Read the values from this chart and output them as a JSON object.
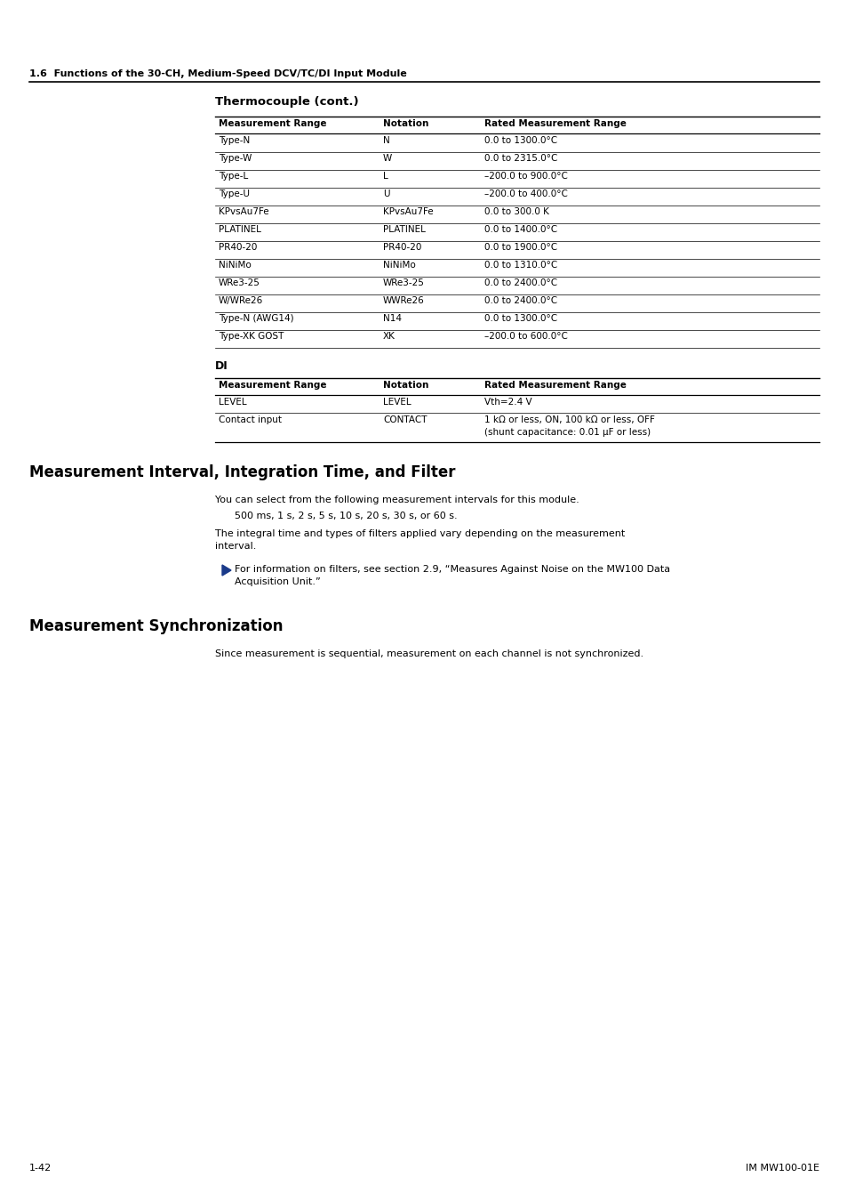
{
  "page_title": "1.6  Functions of the 30-CH, Medium-Speed DCV/TC/DI Input Module",
  "section1_title": "Thermocouple (cont.)",
  "tc_headers": [
    "Measurement Range",
    "Notation",
    "Rated Measurement Range"
  ],
  "tc_rows": [
    [
      "Type-N",
      "N",
      "0.0 to 1300.0°C"
    ],
    [
      "Type-W",
      "W",
      "0.0 to 2315.0°C"
    ],
    [
      "Type-L",
      "L",
      "–200.0 to 900.0°C"
    ],
    [
      "Type-U",
      "U",
      "–200.0 to 400.0°C"
    ],
    [
      "KPvsAu7Fe",
      "KPvsAu7Fe",
      "0.0 to 300.0 K"
    ],
    [
      "PLATINEL",
      "PLATINEL",
      "0.0 to 1400.0°C"
    ],
    [
      "PR40-20",
      "PR40-20",
      "0.0 to 1900.0°C"
    ],
    [
      "NiNiMo",
      "NiNiMo",
      "0.0 to 1310.0°C"
    ],
    [
      "WRe3-25",
      "WRe3-25",
      "0.0 to 2400.0°C"
    ],
    [
      "W/WRe26",
      "WWRe26",
      "0.0 to 2400.0°C"
    ],
    [
      "Type-N (AWG14)",
      "N14",
      "0.0 to 1300.0°C"
    ],
    [
      "Type-XK GOST",
      "XK",
      "–200.0 to 600.0°C"
    ]
  ],
  "section2_title": "DI",
  "di_headers": [
    "Measurement Range",
    "Notation",
    "Rated Measurement Range"
  ],
  "di_rows": [
    [
      "LEVEL",
      "LEVEL",
      "Vth=2.4 V"
    ],
    [
      "Contact input",
      "CONTACT",
      "1 kΩ or less, ON, 100 kΩ or less, OFF\n(shunt capacitance: 0.01 μF or less)"
    ]
  ],
  "section3_title": "Measurement Interval, Integration Time, and Filter",
  "section3_para1": "You can select from the following measurement intervals for this module.",
  "section3_para2": "500 ms, 1 s, 2 s, 5 s, 10 s, 20 s, 30 s, or 60 s.",
  "section3_para3a": "The integral time and types of filters applied vary depending on the measurement",
  "section3_para3b": "interval.",
  "section3_bullet": "For information on filters, see section 2.9, “Measures Against Noise on the MW100 Data",
  "section3_bullet2": "Acquisition Unit.”",
  "section4_title": "Measurement Synchronization",
  "section4_para": "Since measurement is sequential, measurement on each channel is not synchronized.",
  "footer_left": "1-42",
  "footer_right": "IM MW100-01E",
  "bg_color": "#ffffff",
  "text_color": "#000000",
  "bullet_color": "#1a3a8a"
}
